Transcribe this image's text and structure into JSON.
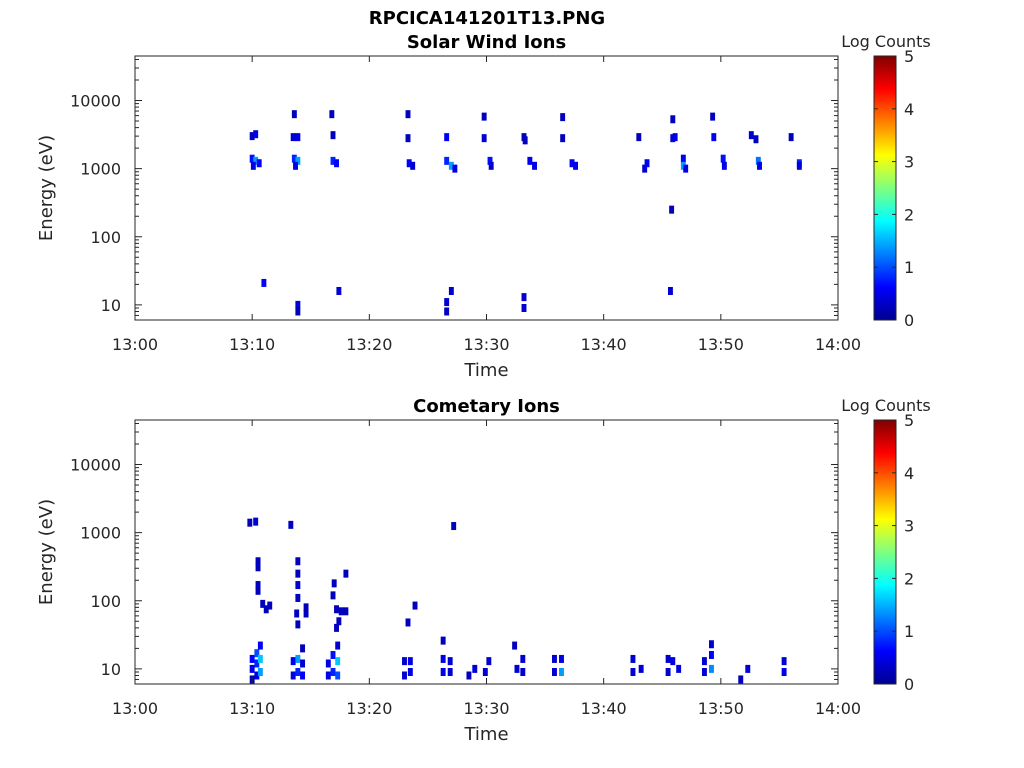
{
  "chart_data": [
    {
      "type": "heatmap",
      "figure_title": "RPCICA141201T13.PNG",
      "title": "Solar Wind Ions",
      "xlabel": "Time",
      "ylabel": "Energy (eV)",
      "x_ticks": [
        "13:00",
        "13:10",
        "13:20",
        "13:30",
        "13:40",
        "13:50",
        "14:00"
      ],
      "x_range_minutes": [
        0,
        60
      ],
      "y_scale": "log",
      "y_range": [
        6,
        45000
      ],
      "y_ticks": [
        10,
        100,
        1000,
        10000
      ],
      "y_tick_labels": [
        "10",
        "100",
        "1000",
        "10000"
      ],
      "colorbar": {
        "title": "Log Counts",
        "min": 0,
        "max": 5,
        "ticks": [
          "0",
          "1",
          "2",
          "3",
          "4",
          "5"
        ],
        "colormap": "jet"
      },
      "cells": [
        {
          "t": 10.0,
          "e": 3000,
          "v": 0.3
        },
        {
          "t": 10.3,
          "e": 3200,
          "v": 0.5
        },
        {
          "t": 10.0,
          "e": 1400,
          "v": 0.7
        },
        {
          "t": 10.3,
          "e": 1300,
          "v": 1.4
        },
        {
          "t": 10.1,
          "e": 1100,
          "v": 0.5
        },
        {
          "t": 10.6,
          "e": 1200,
          "v": 0.6
        },
        {
          "t": 11.0,
          "e": 21,
          "v": 0.6
        },
        {
          "t": 13.6,
          "e": 6300,
          "v": 0.3
        },
        {
          "t": 13.5,
          "e": 2900,
          "v": 0.4
        },
        {
          "t": 13.9,
          "e": 2900,
          "v": 0.5
        },
        {
          "t": 13.6,
          "e": 1400,
          "v": 0.8
        },
        {
          "t": 13.9,
          "e": 1300,
          "v": 1.4
        },
        {
          "t": 13.7,
          "e": 1100,
          "v": 0.5
        },
        {
          "t": 13.9,
          "e": 10,
          "v": 0.4
        },
        {
          "t": 13.9,
          "e": 8,
          "v": 0.3
        },
        {
          "t": 16.8,
          "e": 6300,
          "v": 0.3
        },
        {
          "t": 16.9,
          "e": 3100,
          "v": 0.3
        },
        {
          "t": 16.9,
          "e": 1300,
          "v": 0.8
        },
        {
          "t": 17.2,
          "e": 1200,
          "v": 0.6
        },
        {
          "t": 17.4,
          "e": 16,
          "v": 0.4
        },
        {
          "t": 23.3,
          "e": 6300,
          "v": 0.3
        },
        {
          "t": 23.3,
          "e": 2800,
          "v": 0.3
        },
        {
          "t": 23.4,
          "e": 1200,
          "v": 0.6
        },
        {
          "t": 23.7,
          "e": 1100,
          "v": 0.4
        },
        {
          "t": 26.6,
          "e": 2900,
          "v": 0.6
        },
        {
          "t": 26.6,
          "e": 1300,
          "v": 0.8
        },
        {
          "t": 27.0,
          "e": 1100,
          "v": 1.4
        },
        {
          "t": 27.3,
          "e": 1000,
          "v": 0.5
        },
        {
          "t": 26.6,
          "e": 11,
          "v": 0.4
        },
        {
          "t": 26.6,
          "e": 8,
          "v": 0.3
        },
        {
          "t": 27.0,
          "e": 16,
          "v": 0.4
        },
        {
          "t": 29.8,
          "e": 5800,
          "v": 0.3
        },
        {
          "t": 29.8,
          "e": 2800,
          "v": 0.4
        },
        {
          "t": 30.3,
          "e": 1300,
          "v": 0.7
        },
        {
          "t": 30.4,
          "e": 1100,
          "v": 0.4
        },
        {
          "t": 33.2,
          "e": 2900,
          "v": 0.3
        },
        {
          "t": 33.3,
          "e": 2600,
          "v": 0.3
        },
        {
          "t": 33.7,
          "e": 1300,
          "v": 0.6
        },
        {
          "t": 34.1,
          "e": 1100,
          "v": 0.5
        },
        {
          "t": 33.2,
          "e": 13,
          "v": 0.4
        },
        {
          "t": 33.2,
          "e": 9,
          "v": 0.4
        },
        {
          "t": 36.5,
          "e": 5700,
          "v": 0.3
        },
        {
          "t": 36.5,
          "e": 2800,
          "v": 0.3
        },
        {
          "t": 37.3,
          "e": 1200,
          "v": 0.6
        },
        {
          "t": 37.6,
          "e": 1100,
          "v": 0.5
        },
        {
          "t": 43.0,
          "e": 2900,
          "v": 0.3
        },
        {
          "t": 43.7,
          "e": 1200,
          "v": 0.6
        },
        {
          "t": 43.5,
          "e": 1000,
          "v": 0.4
        },
        {
          "t": 45.9,
          "e": 5300,
          "v": 0.3
        },
        {
          "t": 45.9,
          "e": 2800,
          "v": 0.4
        },
        {
          "t": 46.1,
          "e": 2900,
          "v": 0.5
        },
        {
          "t": 46.8,
          "e": 1400,
          "v": 0.6
        },
        {
          "t": 46.8,
          "e": 1100,
          "v": 1.4
        },
        {
          "t": 47.0,
          "e": 1000,
          "v": 0.5
        },
        {
          "t": 45.8,
          "e": 250,
          "v": 0.3
        },
        {
          "t": 45.7,
          "e": 16,
          "v": 0.4
        },
        {
          "t": 49.3,
          "e": 5800,
          "v": 0.3
        },
        {
          "t": 49.4,
          "e": 2900,
          "v": 0.6
        },
        {
          "t": 50.2,
          "e": 1400,
          "v": 0.7
        },
        {
          "t": 50.3,
          "e": 1100,
          "v": 0.5
        },
        {
          "t": 52.6,
          "e": 3100,
          "v": 0.4
        },
        {
          "t": 53.0,
          "e": 2700,
          "v": 0.3
        },
        {
          "t": 53.2,
          "e": 1300,
          "v": 1.2
        },
        {
          "t": 53.3,
          "e": 1100,
          "v": 0.5
        },
        {
          "t": 56.0,
          "e": 2900,
          "v": 0.3
        },
        {
          "t": 56.7,
          "e": 1200,
          "v": 0.8
        },
        {
          "t": 56.7,
          "e": 1100,
          "v": 0.5
        }
      ]
    },
    {
      "type": "heatmap",
      "title": "Cometary Ions",
      "xlabel": "Time",
      "ylabel": "Energy (eV)",
      "x_ticks": [
        "13:00",
        "13:10",
        "13:20",
        "13:30",
        "13:40",
        "13:50",
        "14:00"
      ],
      "x_range_minutes": [
        0,
        60
      ],
      "y_scale": "log",
      "y_range": [
        6,
        45000
      ],
      "y_ticks": [
        10,
        100,
        1000,
        10000
      ],
      "y_tick_labels": [
        "10",
        "100",
        "1000",
        "10000"
      ],
      "colorbar": {
        "title": "Log Counts",
        "min": 0,
        "max": 5,
        "ticks": [
          "0",
          "1",
          "2",
          "3",
          "4",
          "5"
        ],
        "colormap": "jet"
      },
      "cells": [
        {
          "t": 9.8,
          "e": 1400,
          "v": 0.3
        },
        {
          "t": 10.3,
          "e": 1450,
          "v": 0.4
        },
        {
          "t": 13.3,
          "e": 1300,
          "v": 0.3
        },
        {
          "t": 27.2,
          "e": 1250,
          "v": 0.3
        },
        {
          "t": 10.5,
          "e": 380,
          "v": 0.3
        },
        {
          "t": 10.5,
          "e": 310,
          "v": 0.3
        },
        {
          "t": 10.5,
          "e": 170,
          "v": 0.3
        },
        {
          "t": 10.5,
          "e": 140,
          "v": 0.3
        },
        {
          "t": 10.9,
          "e": 90,
          "v": 0.3
        },
        {
          "t": 11.5,
          "e": 85,
          "v": 0.3
        },
        {
          "t": 11.2,
          "e": 75,
          "v": 0.3
        },
        {
          "t": 13.9,
          "e": 380,
          "v": 0.3
        },
        {
          "t": 13.9,
          "e": 250,
          "v": 0.3
        },
        {
          "t": 13.9,
          "e": 170,
          "v": 0.4
        },
        {
          "t": 13.9,
          "e": 110,
          "v": 0.3
        },
        {
          "t": 13.8,
          "e": 65,
          "v": 0.3
        },
        {
          "t": 14.6,
          "e": 80,
          "v": 0.3
        },
        {
          "t": 14.6,
          "e": 65,
          "v": 0.3
        },
        {
          "t": 13.9,
          "e": 45,
          "v": 0.3
        },
        {
          "t": 17.0,
          "e": 180,
          "v": 0.3
        },
        {
          "t": 16.9,
          "e": 120,
          "v": 0.3
        },
        {
          "t": 17.2,
          "e": 75,
          "v": 0.3
        },
        {
          "t": 17.6,
          "e": 70,
          "v": 0.3
        },
        {
          "t": 17.4,
          "e": 50,
          "v": 0.3
        },
        {
          "t": 17.2,
          "e": 40,
          "v": 0.3
        },
        {
          "t": 18.0,
          "e": 250,
          "v": 0.3
        },
        {
          "t": 18.0,
          "e": 70,
          "v": 0.3
        },
        {
          "t": 23.9,
          "e": 85,
          "v": 0.3
        },
        {
          "t": 23.3,
          "e": 48,
          "v": 0.3
        },
        {
          "t": 10.0,
          "e": 7,
          "v": 0.3
        },
        {
          "t": 10.0,
          "e": 10,
          "v": 0.5
        },
        {
          "t": 10.0,
          "e": 14,
          "v": 0.6
        },
        {
          "t": 10.4,
          "e": 8,
          "v": 0.5
        },
        {
          "t": 10.4,
          "e": 12,
          "v": 0.8
        },
        {
          "t": 10.4,
          "e": 17,
          "v": 1.0
        },
        {
          "t": 10.7,
          "e": 9,
          "v": 1.4
        },
        {
          "t": 10.7,
          "e": 14,
          "v": 1.6
        },
        {
          "t": 10.7,
          "e": 22,
          "v": 0.6
        },
        {
          "t": 13.5,
          "e": 8,
          "v": 0.5
        },
        {
          "t": 13.5,
          "e": 13,
          "v": 0.6
        },
        {
          "t": 13.9,
          "e": 9,
          "v": 0.8
        },
        {
          "t": 13.9,
          "e": 14,
          "v": 1.4
        },
        {
          "t": 14.3,
          "e": 8,
          "v": 0.6
        },
        {
          "t": 14.3,
          "e": 12,
          "v": 0.4
        },
        {
          "t": 14.3,
          "e": 20,
          "v": 0.3
        },
        {
          "t": 16.5,
          "e": 8,
          "v": 0.5
        },
        {
          "t": 16.5,
          "e": 12,
          "v": 0.5
        },
        {
          "t": 16.9,
          "e": 9,
          "v": 0.8
        },
        {
          "t": 16.9,
          "e": 16,
          "v": 0.7
        },
        {
          "t": 17.3,
          "e": 8,
          "v": 1.0
        },
        {
          "t": 17.3,
          "e": 13,
          "v": 1.6
        },
        {
          "t": 17.3,
          "e": 22,
          "v": 0.4
        },
        {
          "t": 23.0,
          "e": 8,
          "v": 0.4
        },
        {
          "t": 23.0,
          "e": 13,
          "v": 0.4
        },
        {
          "t": 23.5,
          "e": 9,
          "v": 0.5
        },
        {
          "t": 23.5,
          "e": 13,
          "v": 0.5
        },
        {
          "t": 26.3,
          "e": 9,
          "v": 0.5
        },
        {
          "t": 26.3,
          "e": 14,
          "v": 0.5
        },
        {
          "t": 26.3,
          "e": 26,
          "v": 0.3
        },
        {
          "t": 26.9,
          "e": 9,
          "v": 0.4
        },
        {
          "t": 26.9,
          "e": 13,
          "v": 0.4
        },
        {
          "t": 28.5,
          "e": 8,
          "v": 0.3
        },
        {
          "t": 29.0,
          "e": 10,
          "v": 0.4
        },
        {
          "t": 29.9,
          "e": 9,
          "v": 0.4
        },
        {
          "t": 30.2,
          "e": 13,
          "v": 0.4
        },
        {
          "t": 32.4,
          "e": 22,
          "v": 0.3
        },
        {
          "t": 32.6,
          "e": 10,
          "v": 0.4
        },
        {
          "t": 33.1,
          "e": 9,
          "v": 0.4
        },
        {
          "t": 33.1,
          "e": 14,
          "v": 0.4
        },
        {
          "t": 35.8,
          "e": 9,
          "v": 0.4
        },
        {
          "t": 35.8,
          "e": 14,
          "v": 0.4
        },
        {
          "t": 36.4,
          "e": 9,
          "v": 1.4
        },
        {
          "t": 36.4,
          "e": 14,
          "v": 0.5
        },
        {
          "t": 42.5,
          "e": 9,
          "v": 0.4
        },
        {
          "t": 42.5,
          "e": 14,
          "v": 0.4
        },
        {
          "t": 43.2,
          "e": 10,
          "v": 0.4
        },
        {
          "t": 45.5,
          "e": 9,
          "v": 0.4
        },
        {
          "t": 45.9,
          "e": 13,
          "v": 0.5
        },
        {
          "t": 46.4,
          "e": 10,
          "v": 0.5
        },
        {
          "t": 45.5,
          "e": 14,
          "v": 0.4
        },
        {
          "t": 48.6,
          "e": 9,
          "v": 0.4
        },
        {
          "t": 48.6,
          "e": 13,
          "v": 0.4
        },
        {
          "t": 49.2,
          "e": 10,
          "v": 1.3
        },
        {
          "t": 49.2,
          "e": 16,
          "v": 0.6
        },
        {
          "t": 49.2,
          "e": 23,
          "v": 0.4
        },
        {
          "t": 51.7,
          "e": 7,
          "v": 0.3
        },
        {
          "t": 52.3,
          "e": 10,
          "v": 0.4
        },
        {
          "t": 55.4,
          "e": 9,
          "v": 0.5
        },
        {
          "t": 55.4,
          "e": 13,
          "v": 0.4
        }
      ]
    }
  ]
}
